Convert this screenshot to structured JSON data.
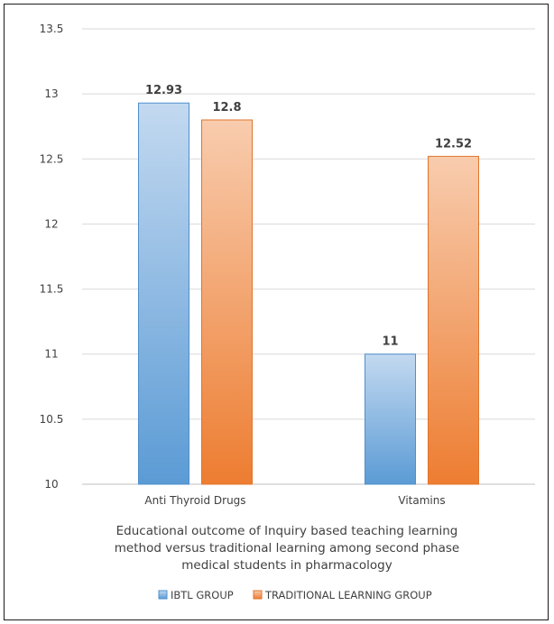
{
  "chart_data": {
    "type": "bar",
    "title_lines": [
      "Educational outcome of Inquiry based teaching learning",
      "method versus traditional learning among second phase",
      "medical students in pharmacology"
    ],
    "categories": [
      "Anti Thyroid Drugs",
      "Vitamins"
    ],
    "series": [
      {
        "name": "IBTL GROUP",
        "values": [
          12.93,
          11
        ],
        "value_labels": [
          "12.93",
          "11"
        ],
        "color": "#5b9bd5"
      },
      {
        "name": "TRADITIONAL LEARNING GROUP",
        "values": [
          12.8,
          12.52
        ],
        "value_labels": [
          "12.8",
          "12.52"
        ],
        "color": "#ed7d31"
      }
    ],
    "ylim": [
      10,
      13.5
    ],
    "y_ticks": [
      "10",
      "10.5",
      "11",
      "11.5",
      "12",
      "12.5",
      "13",
      "13.5"
    ],
    "grid": true,
    "legend": "bottom"
  }
}
